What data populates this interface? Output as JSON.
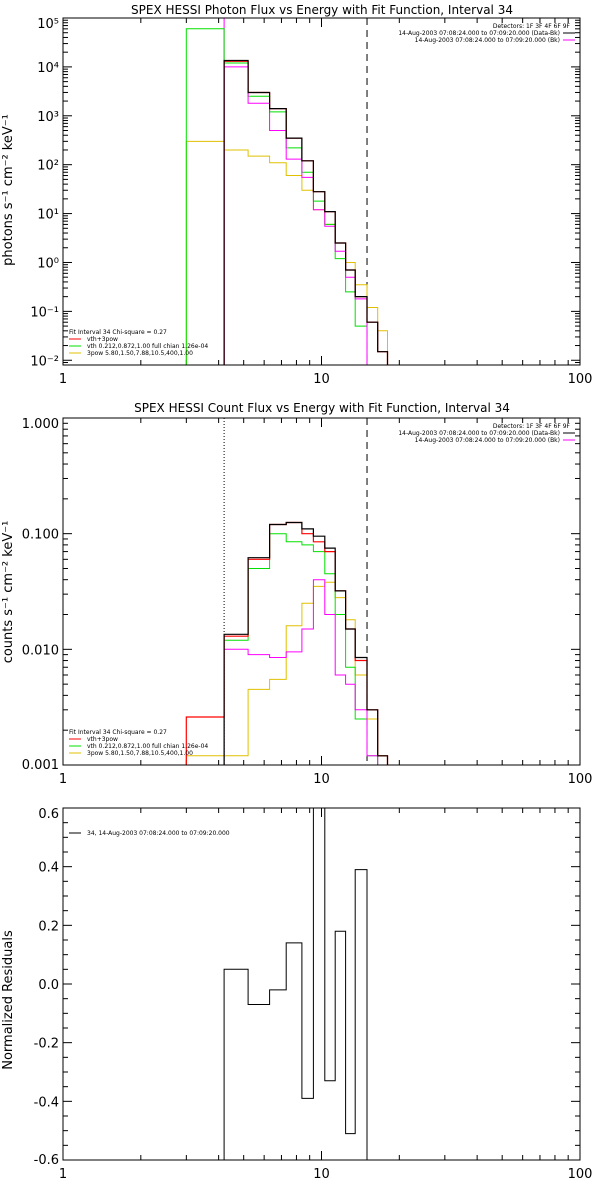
{
  "colors": {
    "data": "#000000",
    "total": "#ff0000",
    "background": "#ff00ff",
    "thermal": "#00e000",
    "powerlaw": "#e0c000"
  },
  "chart_data": [
    {
      "type": "line",
      "title": "SPEX HESSI Photon Flux vs Energy with Fit Function, Interval 34",
      "ylabel": "photons s⁻¹ cm⁻² keV⁻¹",
      "xlabel": "",
      "xscale": "log",
      "yscale": "log",
      "xlim": [
        1,
        100
      ],
      "ylim": [
        0.008,
        100000
      ],
      "x_ticks": [
        {
          "v": 1,
          "label": "1"
        },
        {
          "v": 10,
          "label": "10"
        },
        {
          "v": 100,
          "label": "100"
        }
      ],
      "y_ticks": [
        {
          "v": 0.01,
          "label": "10⁻²"
        },
        {
          "v": 0.1,
          "label": "10⁻¹"
        },
        {
          "v": 1,
          "label": "10⁰"
        },
        {
          "v": 10,
          "label": "10¹"
        },
        {
          "v": 100,
          "label": "10²"
        },
        {
          "v": 1000,
          "label": "10³"
        },
        {
          "v": 10000,
          "label": "10⁴"
        },
        {
          "v": 100000,
          "label": "10⁵"
        }
      ],
      "vlines": [
        {
          "x": 4.2,
          "style": "solid",
          "color": "#ff00ff"
        },
        {
          "x": 15,
          "style": "dashed",
          "color": "#000000"
        }
      ],
      "bin_edges": [
        3,
        4.2,
        5.2,
        6.3,
        7.3,
        8.4,
        9.3,
        10.3,
        11.3,
        12.4,
        13.5,
        15,
        16.5,
        18
      ],
      "series": [
        {
          "key": "pl",
          "values": [
            300,
            200,
            150,
            110,
            60,
            30,
            12,
            6,
            2.5,
            1,
            0.35,
            0.12,
            0.04
          ]
        },
        {
          "key": "th",
          "values": [
            60000,
            12000,
            2500,
            1200,
            220,
            70,
            18,
            6,
            1.2,
            0.25,
            0.05
          ]
        },
        {
          "key": "bk",
          "values": [
            0,
            10000,
            1800,
            500,
            130,
            55,
            12,
            5.5,
            1.7,
            0.5,
            0.18
          ]
        },
        {
          "key": "tot",
          "values": [
            0,
            13000,
            3000,
            1400,
            350,
            120,
            28,
            11,
            2.5,
            0.7,
            0.2,
            0.06,
            0.015
          ]
        },
        {
          "key": "dat",
          "values": [
            0,
            13500,
            3000,
            1400,
            350,
            120,
            28,
            11,
            2.5,
            0.7,
            0.2,
            0.06,
            0.015
          ]
        }
      ],
      "legend_left": {
        "header": "Fit Interval 34    Chi-square = 0.27",
        "entries": [
          {
            "text": "vth+3pow",
            "color": "#ff0000"
          },
          {
            "text": "vth 0.212,0.872,1.00  full chian 1.26e-04",
            "color": "#00e000"
          },
          {
            "text": "3pow 5.80,1.50,7.88,10.5,400,1.00",
            "color": "#e0c000"
          }
        ]
      },
      "legend_right": {
        "header": "Detectors: 1F 3F 4F 6F 9F",
        "entries": [
          {
            "text": "14-Aug-2003 07:08:24.000 to 07:09:20.000 (Data-Bk)",
            "color": "#000000"
          },
          {
            "text": "14-Aug-2003 07:08:24.000 to 07:09:20.000 (Bk)",
            "color": "#ff00ff"
          }
        ]
      }
    },
    {
      "type": "line",
      "title": "SPEX HESSI Count Flux vs Energy with Fit Function, Interval 34",
      "ylabel": "counts s⁻¹ cm⁻² keV⁻¹",
      "xlabel": "",
      "xscale": "log",
      "yscale": "log",
      "xlim": [
        1,
        100
      ],
      "ylim": [
        0.001,
        1.0
      ],
      "x_ticks": [
        {
          "v": 1,
          "label": "1"
        },
        {
          "v": 10,
          "label": "10"
        },
        {
          "v": 100,
          "label": "100"
        }
      ],
      "y_ticks": [
        {
          "v": 0.001,
          "label": "0.001"
        },
        {
          "v": 0.01,
          "label": "0.010"
        },
        {
          "v": 0.1,
          "label": "0.100"
        },
        {
          "v": 1.0,
          "label": "1.000"
        }
      ],
      "vlines": [
        {
          "x": 4.2,
          "style": "dotted",
          "color": "#000000"
        },
        {
          "x": 15,
          "style": "dashed",
          "color": "#000000"
        }
      ],
      "bin_edges": [
        3,
        4.2,
        5.2,
        6.3,
        7.3,
        8.4,
        9.3,
        10.3,
        11.3,
        12.4,
        13.5,
        15,
        16.5,
        18
      ],
      "series": [
        {
          "key": "pl",
          "values": [
            0.0012,
            0.0012,
            0.0045,
            0.0055,
            0.016,
            0.025,
            0.035,
            0.038,
            0.028,
            0.018,
            0.006,
            0.0025,
            0.0012
          ]
        },
        {
          "key": "th",
          "values": [
            0,
            0.012,
            0.05,
            0.1,
            0.085,
            0.08,
            0.07,
            0.045,
            0.02,
            0.007,
            0.0025,
            0.0012
          ]
        },
        {
          "key": "bk",
          "values": [
            0,
            0.01,
            0.009,
            0.0085,
            0.0095,
            0.015,
            0.04,
            0.02,
            0.006,
            0.005,
            0.003,
            0.0012
          ]
        },
        {
          "key": "tot",
          "values": [
            0.0026,
            0.013,
            0.06,
            0.12,
            0.125,
            0.1,
            0.085,
            0.07,
            0.032,
            0.015,
            0.008,
            0.003,
            0.0012
          ]
        },
        {
          "key": "dat",
          "values": [
            0,
            0.0135,
            0.062,
            0.12,
            0.125,
            0.11,
            0.095,
            0.075,
            0.032,
            0.015,
            0.0085,
            0.003,
            0.0012
          ]
        }
      ],
      "legend_left": {
        "header": "Fit Interval 34    Chi-square = 0.27",
        "entries": [
          {
            "text": "vth+3pow",
            "color": "#ff0000"
          },
          {
            "text": "vth 0.212,0.872,1.00  full chian 1.26e-04",
            "color": "#00e000"
          },
          {
            "text": "3pow 5.80,1.50,7.88,10.5,400,1.00",
            "color": "#e0c000"
          }
        ]
      },
      "legend_right": {
        "header": "Detectors: 1F 3F 4F 6F 9F",
        "entries": [
          {
            "text": "14-Aug-2003 07:08:24.000 to 07:09:20.000 (Data-Bk)",
            "color": "#000000"
          },
          {
            "text": "14-Aug-2003 07:08:24.000 to 07:09:20.000 (Bk)",
            "color": "#ff00ff"
          }
        ]
      }
    },
    {
      "type": "line",
      "title": "",
      "ylabel": "Normalized Residuals",
      "xlabel": "",
      "xscale": "log",
      "yscale": "linear",
      "xlim": [
        1,
        100
      ],
      "ylim": [
        -0.6,
        0.6
      ],
      "x_ticks": [
        {
          "v": 1,
          "label": "1"
        },
        {
          "v": 10,
          "label": "10"
        },
        {
          "v": 100,
          "label": "100"
        }
      ],
      "y_ticks": [
        {
          "v": -0.6,
          "label": "-0.6"
        },
        {
          "v": -0.4,
          "label": "-0.4"
        },
        {
          "v": -0.2,
          "label": "-0.2"
        },
        {
          "v": 0.0,
          "label": "0.0"
        },
        {
          "v": 0.2,
          "label": "0.2"
        },
        {
          "v": 0.4,
          "label": "0.4"
        },
        {
          "v": 0.6,
          "label": "0.6"
        }
      ],
      "bin_edges": [
        4.2,
        5.2,
        6.3,
        7.3,
        8.4,
        9.3,
        10.3,
        11.3,
        12.4,
        13.5,
        15
      ],
      "residuals": [
        0.05,
        -0.07,
        -0.02,
        0.14,
        -0.39,
        0.6,
        -0.33,
        0.18,
        -0.51,
        0.39
      ],
      "legend_left": {
        "header": "",
        "entries": [
          {
            "text": "34, 14-Aug-2003 07:08:24.000 to 07:09:20.000",
            "color": "#000000"
          }
        ]
      }
    }
  ]
}
